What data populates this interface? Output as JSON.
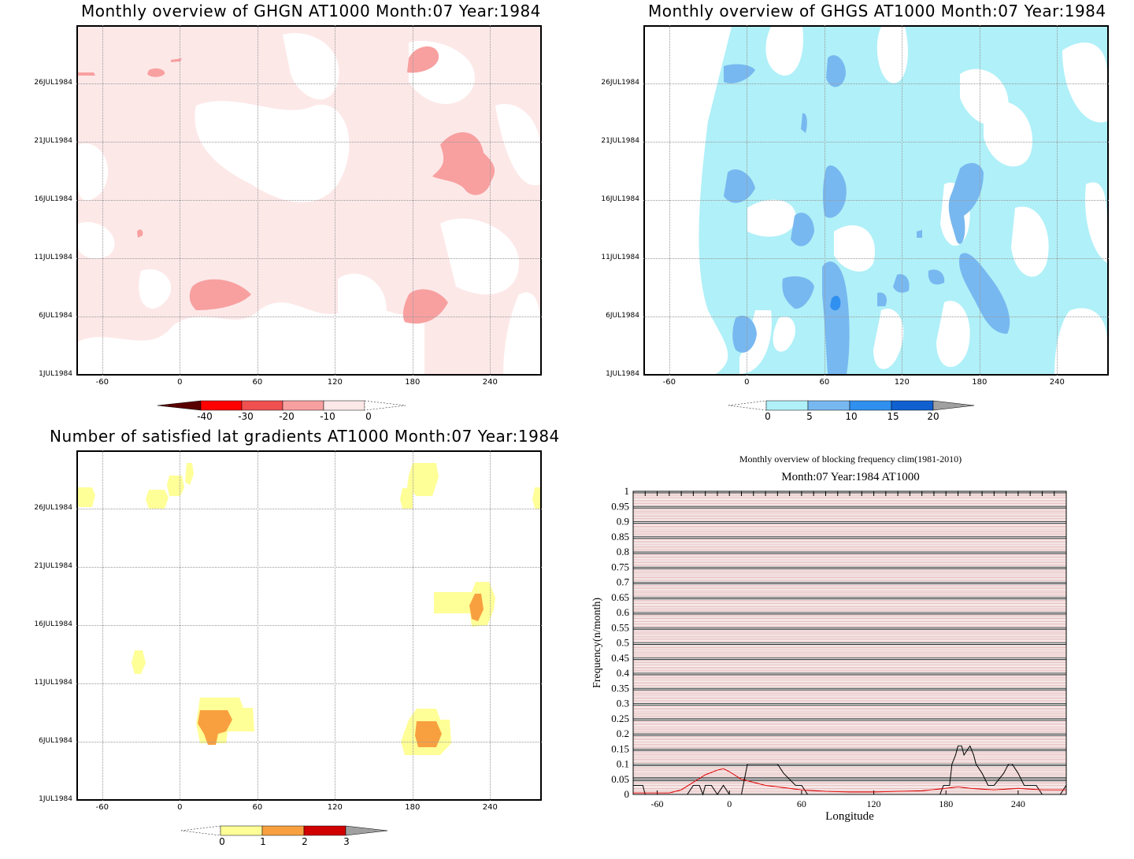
{
  "panels": {
    "p1": {
      "title": "Monthly overview of GHGN AT1000 Month:07 Year:1984",
      "colorbar": {
        "labels": [
          "-40",
          "-30",
          "-20",
          "-10",
          "0"
        ],
        "colors": [
          "#ff0000",
          "#f05050",
          "#f8a0a0",
          "#fde8e8"
        ],
        "low_triangle": "#5a0000"
      }
    },
    "p2": {
      "title": "Monthly overview of GHGS AT1000 Month:07 Year:1984",
      "colorbar": {
        "labels": [
          "0",
          "5",
          "10",
          "15",
          "20"
        ],
        "colors": [
          "#b0f0f8",
          "#78b8f0",
          "#3090f0",
          "#1060d0"
        ],
        "high_triangle": "#a0a0a0"
      }
    },
    "p3": {
      "title": "Number of satisfied lat gradients AT1000 Month:07 Year:1984",
      "colorbar": {
        "labels": [
          "0",
          "1",
          "2",
          "3"
        ],
        "colors": [
          "#ffff98",
          "#f8a040",
          "#d00000"
        ],
        "high_triangle": "#a0a0a0"
      }
    },
    "p4": {
      "title1": "Monthly overview of blocking frequency clim(1981-2010)",
      "title2": "Month:07 Year:1984  AT1000"
    }
  },
  "hovmoller_axes": {
    "y_ticks": [
      "26JUL1984",
      "21JUL1984",
      "16JUL1984",
      "11JUL1984",
      "6JUL1984",
      "1JUL1984"
    ],
    "x_ticks": [
      "-60",
      "0",
      "60",
      "120",
      "180",
      "240"
    ]
  },
  "chart_data": [
    {
      "type": "heatmap",
      "title": "Monthly overview of GHGN AT1000 Month:07 Year:1984",
      "xlim": [
        -80,
        280
      ],
      "x_ticks": [
        -60,
        0,
        60,
        120,
        180,
        240
      ],
      "y_ticks": [
        "1JUL1984",
        "6JUL1984",
        "11JUL1984",
        "16JUL1984",
        "21JUL1984",
        "26JUL1984"
      ],
      "levels": [
        -40,
        -30,
        -20,
        -10,
        0
      ]
    },
    {
      "type": "heatmap",
      "title": "Monthly overview of GHGS AT1000 Month:07 Year:1984",
      "xlim": [
        -80,
        280
      ],
      "x_ticks": [
        -60,
        0,
        60,
        120,
        180,
        240
      ],
      "y_ticks": [
        "1JUL1984",
        "6JUL1984",
        "11JUL1984",
        "16JUL1984",
        "21JUL1984",
        "26JUL1984"
      ],
      "levels": [
        0,
        5,
        10,
        15,
        20
      ]
    },
    {
      "type": "heatmap",
      "title": "Number of satisfied lat gradients AT1000 Month:07 Year:1984",
      "xlim": [
        -80,
        280
      ],
      "x_ticks": [
        -60,
        0,
        60,
        120,
        180,
        240
      ],
      "y_ticks": [
        "1JUL1984",
        "6JUL1984",
        "11JUL1984",
        "16JUL1984",
        "21JUL1984",
        "26JUL1984"
      ],
      "levels": [
        0,
        1,
        2,
        3
      ]
    },
    {
      "type": "line",
      "title": "Monthly overview of blocking frequency clim(1981-2010)",
      "subtitle": "Month:07 Year:1984  AT1000",
      "xlabel": "Longitude",
      "ylabel": "Frequency(n/month)",
      "xlim": [
        -80,
        280
      ],
      "ylim": [
        0,
        1
      ],
      "x_ticks": [
        "-60",
        "0",
        "60",
        "120",
        "180",
        "240"
      ],
      "y_ticks": [
        "0",
        "0.05",
        "0.1",
        "0.15",
        "0.2",
        "0.25",
        "0.3",
        "0.35",
        "0.4",
        "0.45",
        "0.5",
        "0.55",
        "0.6",
        "0.65",
        "0.7",
        "0.75",
        "0.8",
        "0.85",
        "0.9",
        "0.95",
        "1"
      ],
      "series": [
        {
          "color": "#000000",
          "x": [
            -80,
            -72,
            -70,
            -60,
            -50,
            -40,
            -35,
            -30,
            -25,
            -22,
            -20,
            -15,
            -10,
            -5,
            0,
            5,
            10,
            15,
            20,
            25,
            40,
            45,
            55,
            60,
            65,
            70,
            80,
            100,
            120,
            150,
            175,
            178,
            180,
            183,
            185,
            188,
            190,
            193,
            195,
            200,
            203,
            205,
            210,
            215,
            220,
            228,
            232,
            235,
            240,
            245,
            250,
            255,
            260,
            265,
            270,
            275,
            280
          ],
          "y": [
            0.03,
            0.03,
            0,
            0,
            0,
            0,
            0,
            0.03,
            0.03,
            0,
            0.03,
            0.03,
            0,
            0.03,
            0,
            0,
            0,
            0.1,
            0.1,
            0.1,
            0.1,
            0.07,
            0.03,
            0.03,
            0,
            0,
            0,
            0,
            0,
            0,
            0,
            0.03,
            0.03,
            0.03,
            0.1,
            0.13,
            0.16,
            0.16,
            0.13,
            0.16,
            0.13,
            0.1,
            0.07,
            0.03,
            0.03,
            0.07,
            0.1,
            0.1,
            0.07,
            0.03,
            0.03,
            0.03,
            0,
            0,
            0,
            0,
            0.03
          ]
        },
        {
          "color": "#e00000",
          "x": [
            -80,
            -60,
            -50,
            -40,
            -30,
            -20,
            -10,
            -5,
            0,
            10,
            20,
            30,
            40,
            60,
            80,
            100,
            120,
            160,
            180,
            190,
            200,
            220,
            240,
            260,
            280
          ],
          "y": [
            0.005,
            0.005,
            0.005,
            0.015,
            0.04,
            0.065,
            0.08,
            0.085,
            0.075,
            0.05,
            0.04,
            0.03,
            0.025,
            0.015,
            0.01,
            0.008,
            0.008,
            0.012,
            0.02,
            0.025,
            0.02,
            0.015,
            0.02,
            0.015,
            0.015
          ]
        }
      ]
    }
  ]
}
